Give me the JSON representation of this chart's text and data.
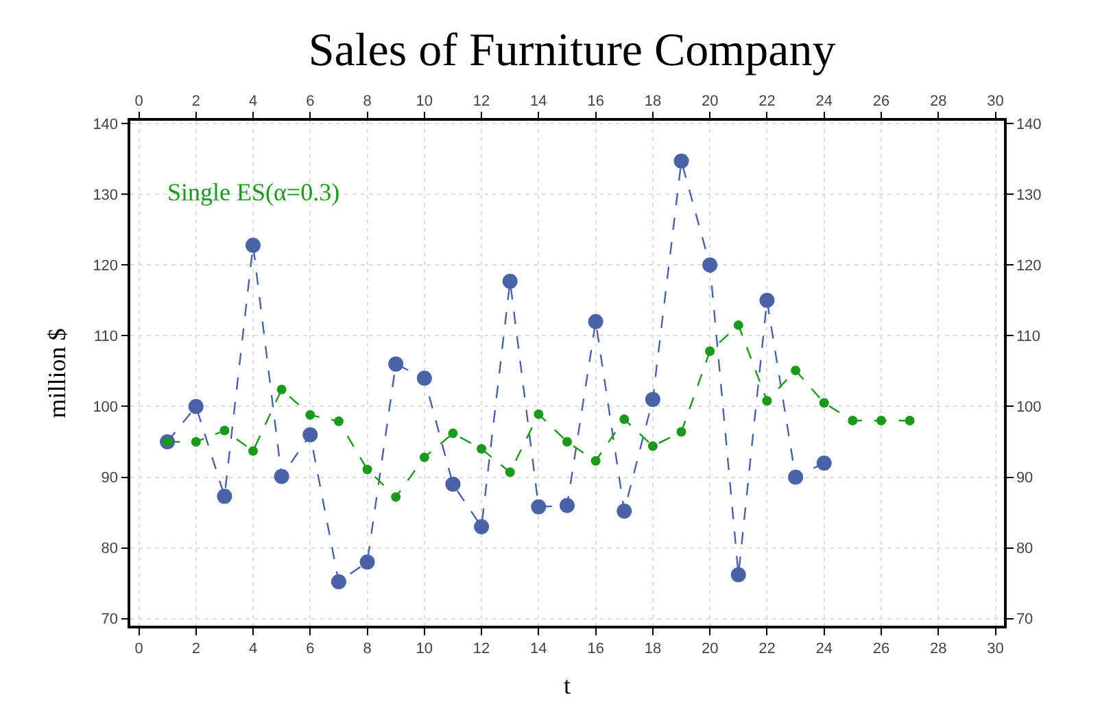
{
  "chart_data": {
    "type": "line",
    "title": "Sales of Furniture Company",
    "xlabel": "t",
    "ylabel": "million $",
    "xlim": [
      -0.3,
      30.3
    ],
    "xticks": [
      0,
      2,
      4,
      6,
      8,
      10,
      12,
      14,
      16,
      18,
      20,
      22,
      24,
      26,
      28,
      30
    ],
    "x2lim": [
      -0.3,
      30.3
    ],
    "x2ticks": [
      0,
      2,
      4,
      6,
      8,
      10,
      12,
      14,
      16,
      18,
      20,
      22,
      24,
      26,
      28,
      30
    ],
    "ylim": [
      69,
      140.4
    ],
    "yticks": [
      70,
      80,
      90,
      100,
      110,
      120,
      130,
      140
    ],
    "y2lim": [
      69,
      140.4
    ],
    "y2ticks": [
      70,
      80,
      90,
      100,
      110,
      120,
      130,
      140
    ],
    "grid": true,
    "legend": false,
    "marker": "circle",
    "series": [
      {
        "color": "#4a62a8",
        "line_style": "dashed",
        "x": [
          1,
          2,
          3,
          4,
          5,
          6,
          7,
          8,
          9,
          10,
          11,
          12,
          13,
          14,
          15,
          16,
          17,
          18,
          19,
          20,
          21,
          22,
          23,
          24
        ],
        "values": [
          95,
          100,
          87.3,
          122.8,
          90.1,
          96,
          75.2,
          78,
          106,
          104,
          89,
          83,
          117.7,
          85.8,
          86,
          112,
          85.2,
          101,
          134.7,
          120,
          76.2,
          115,
          90,
          92
        ]
      },
      {
        "name": "Single ES(α=0.3)",
        "color": "#1a9a1a",
        "line_style": "dashed",
        "x": [
          1,
          2,
          3,
          4,
          5,
          6,
          7,
          8,
          9,
          10,
          11,
          12,
          13,
          14,
          15,
          16,
          17,
          18,
          19,
          20,
          21,
          22,
          23,
          24,
          25,
          26,
          27
        ],
        "values": [
          95,
          95,
          96.6,
          93.7,
          102.4,
          98.8,
          97.9,
          91.1,
          87.2,
          92.8,
          96.2,
          94,
          90.7,
          98.9,
          95,
          92.3,
          98.2,
          94.4,
          96.4,
          107.8,
          111.5,
          100.8,
          105.1,
          100.5,
          98,
          98,
          98
        ]
      }
    ]
  }
}
